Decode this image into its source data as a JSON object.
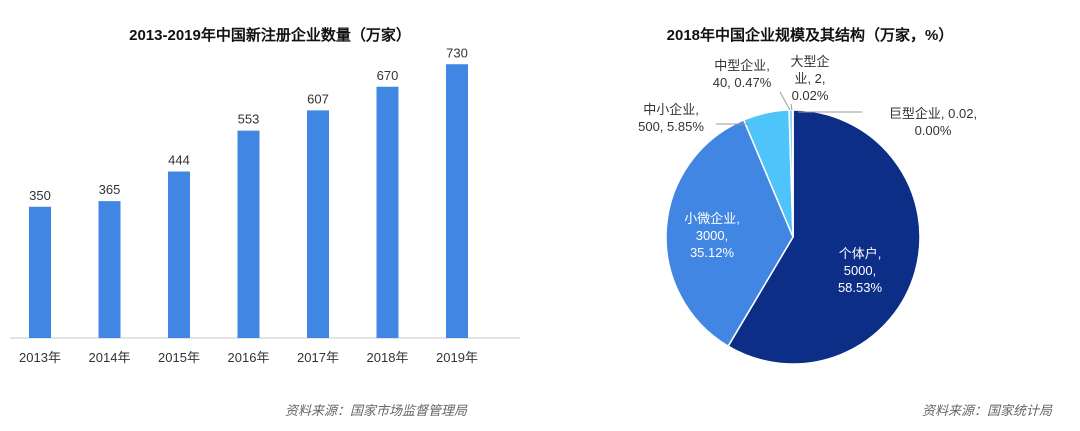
{
  "chart_data": [
    {
      "type": "bar",
      "title": "2013-2019年中国新注册企业数量（万家）",
      "categories": [
        "2013年",
        "2014年",
        "2015年",
        "2016年",
        "2017年",
        "2018年",
        "2019年"
      ],
      "values": [
        350,
        365,
        444,
        553,
        607,
        670,
        730
      ],
      "data_labels": [
        "350",
        "365",
        "444",
        "553",
        "607",
        "670",
        "730"
      ],
      "ylim": [
        0,
        800
      ],
      "grid": false,
      "bar_color": "#4186e2",
      "source": "资料来源：国家市场监督管理局"
    },
    {
      "type": "pie",
      "title": "2018年中国企业规模及其结构（万家，%）",
      "slices": [
        {
          "label_lines": [
            "个体户,",
            "5000,",
            "58.53%"
          ],
          "value": 5000,
          "percent": 58.53,
          "color": "#0c2e86"
        },
        {
          "label_lines": [
            "小微企业,",
            "3000,",
            "35.12%"
          ],
          "value": 3000,
          "percent": 35.12,
          "color": "#4186e2"
        },
        {
          "label_lines": [
            "中小企业,",
            "500, 5.85%"
          ],
          "value": 500,
          "percent": 5.85,
          "color": "#4fc4fb"
        },
        {
          "label_lines": [
            "中型企业,",
            "40, 0.47%"
          ],
          "value": 40,
          "percent": 0.47,
          "color": "#8fd3f4"
        },
        {
          "label_lines": [
            "大型企",
            "业, 2,",
            "0.02%"
          ],
          "value": 2,
          "percent": 0.02,
          "color": "#1a3a8a"
        },
        {
          "label_lines": [
            "巨型企业, 0.02,",
            "0.00%"
          ],
          "value": 0.02,
          "percent": 0.0,
          "color": "#0c2e86"
        }
      ],
      "source": "资料来源：国家统计局"
    }
  ]
}
